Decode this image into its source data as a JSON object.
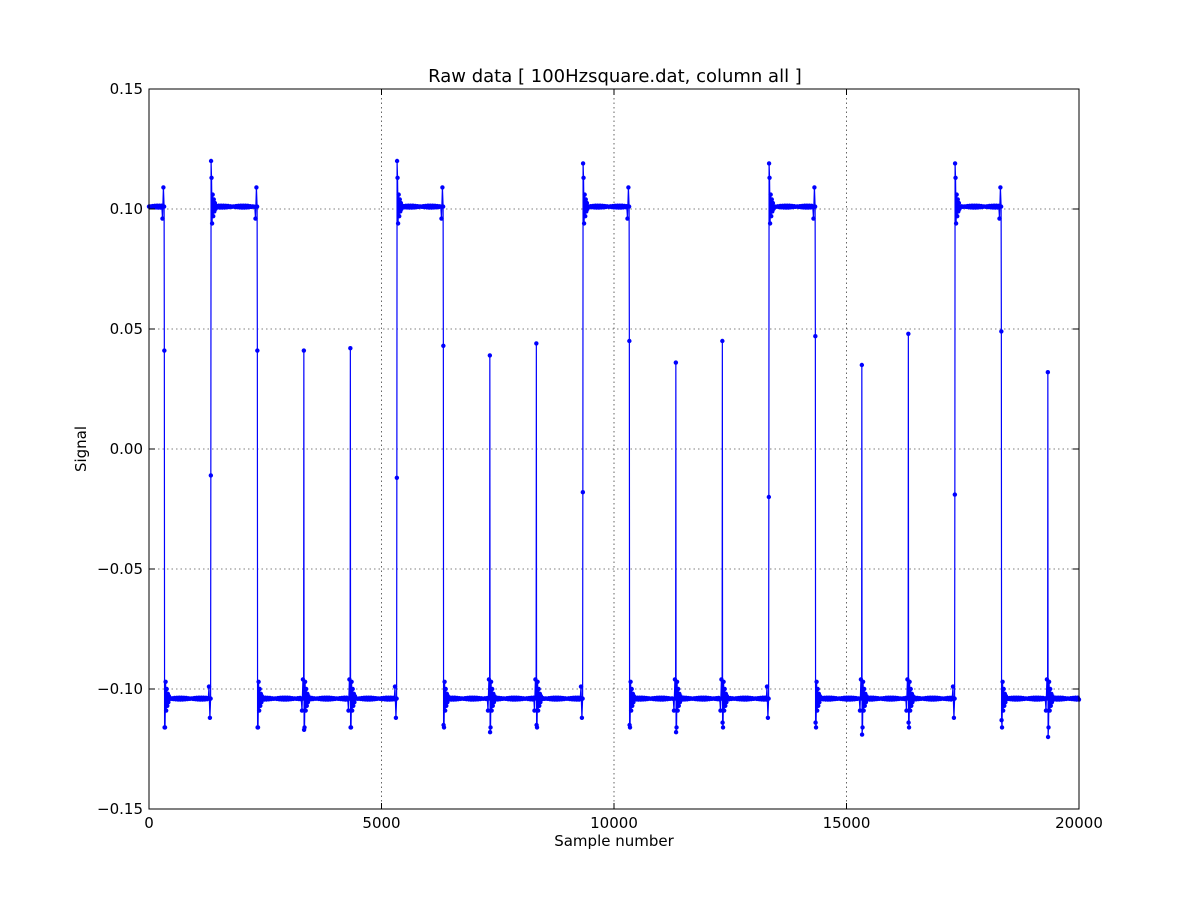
{
  "chart_data": {
    "type": "line",
    "title": "Raw data  [ 100Hzsquare.dat, column all ]",
    "xlabel": "Sample number",
    "ylabel": "Signal",
    "xlim": [
      0,
      20000
    ],
    "ylim": [
      -0.15,
      0.15
    ],
    "xticks": [
      0,
      5000,
      10000,
      15000,
      20000
    ],
    "yticks": [
      -0.15,
      -0.1,
      -0.05,
      0.0,
      0.05,
      0.1,
      0.15
    ],
    "xtick_labels": [
      "0",
      "5000",
      "10000",
      "15000",
      "20000"
    ],
    "ytick_labels": [
      "−0.15",
      "−0.10",
      "−0.05",
      "0.00",
      "0.05",
      "0.10",
      "0.15"
    ],
    "grid": true,
    "series_color": "#0000ff",
    "marker": "dot",
    "high_level": 0.101,
    "low_level": -0.104,
    "falling_edges": [
      {
        "x": 330,
        "mid": 0.041,
        "overshoot": -0.116
      },
      {
        "x": 2330,
        "mid": 0.041,
        "overshoot": -0.116
      },
      {
        "x": 3330,
        "mid": 0.041,
        "overshoot": -0.117
      },
      {
        "x": 4330,
        "mid": 0.042,
        "overshoot": -0.116
      },
      {
        "x": 6330,
        "mid": 0.043,
        "overshoot": -0.115
      },
      {
        "x": 7330,
        "mid": 0.039,
        "overshoot": -0.118
      },
      {
        "x": 8330,
        "mid": 0.044,
        "overshoot": -0.115
      },
      {
        "x": 10330,
        "mid": 0.045,
        "overshoot": -0.115
      },
      {
        "x": 11330,
        "mid": 0.036,
        "overshoot": -0.118
      },
      {
        "x": 12330,
        "mid": 0.045,
        "overshoot": -0.114
      },
      {
        "x": 14330,
        "mid": 0.047,
        "overshoot": -0.114
      },
      {
        "x": 15330,
        "mid": 0.035,
        "overshoot": -0.119
      },
      {
        "x": 16330,
        "mid": 0.048,
        "overshoot": -0.114
      },
      {
        "x": 18330,
        "mid": 0.049,
        "overshoot": -0.113
      },
      {
        "x": 19330,
        "mid": 0.032,
        "overshoot": -0.12
      }
    ],
    "rising_edges": [
      {
        "x": 1330,
        "mid": -0.011,
        "overshoot": 0.12
      },
      {
        "x": 5330,
        "mid": -0.012,
        "overshoot": 0.12
      },
      {
        "x": 9330,
        "mid": -0.018,
        "overshoot": 0.119
      },
      {
        "x": 13330,
        "mid": -0.02,
        "overshoot": 0.119
      },
      {
        "x": 17330,
        "mid": -0.019,
        "overshoot": 0.119
      }
    ]
  }
}
